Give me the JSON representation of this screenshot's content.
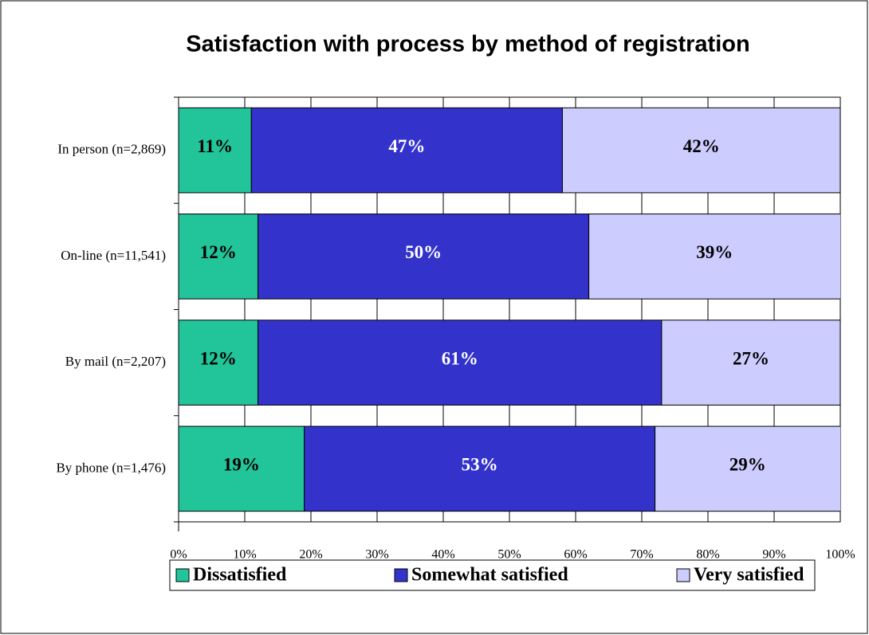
{
  "chart_data": {
    "type": "stacked_bar_horizontal",
    "title": "Satisfaction with process by method of registration",
    "categories": [
      "In person (n=2,869)",
      "On-line (n=11,541)",
      "By mail (n=2,207)",
      "By phone (n=1,476)"
    ],
    "series": [
      {
        "name": "Dissatisfied",
        "color": "#22c49a",
        "values": [
          11,
          12,
          12,
          19
        ],
        "value_labels": [
          "11%",
          "12%",
          "12%",
          "19%"
        ]
      },
      {
        "name": "Somewhat satisfied",
        "color": "#3333cc",
        "values": [
          47,
          50,
          61,
          53
        ],
        "value_labels": [
          "47%",
          "50%",
          "61%",
          "53%"
        ]
      },
      {
        "name": "Very satisfied",
        "color": "#ccccff",
        "values": [
          42,
          39,
          27,
          29
        ],
        "value_labels": [
          "42%",
          "39%",
          "27%",
          "29%"
        ]
      }
    ],
    "xlim": [
      0,
      100
    ],
    "xticks": [
      {
        "value": 0,
        "label": "0%"
      },
      {
        "value": 10,
        "label": "10%"
      },
      {
        "value": 20,
        "label": "20%"
      },
      {
        "value": 30,
        "label": "30%"
      },
      {
        "value": 40,
        "label": "40%"
      },
      {
        "value": 50,
        "label": "50%"
      },
      {
        "value": 60,
        "label": "60%"
      },
      {
        "value": 70,
        "label": "70%"
      },
      {
        "value": 80,
        "label": "80%"
      },
      {
        "value": 90,
        "label": "90%"
      },
      {
        "value": 100,
        "label": "100%"
      }
    ],
    "grid": true,
    "legend": "bottom"
  }
}
